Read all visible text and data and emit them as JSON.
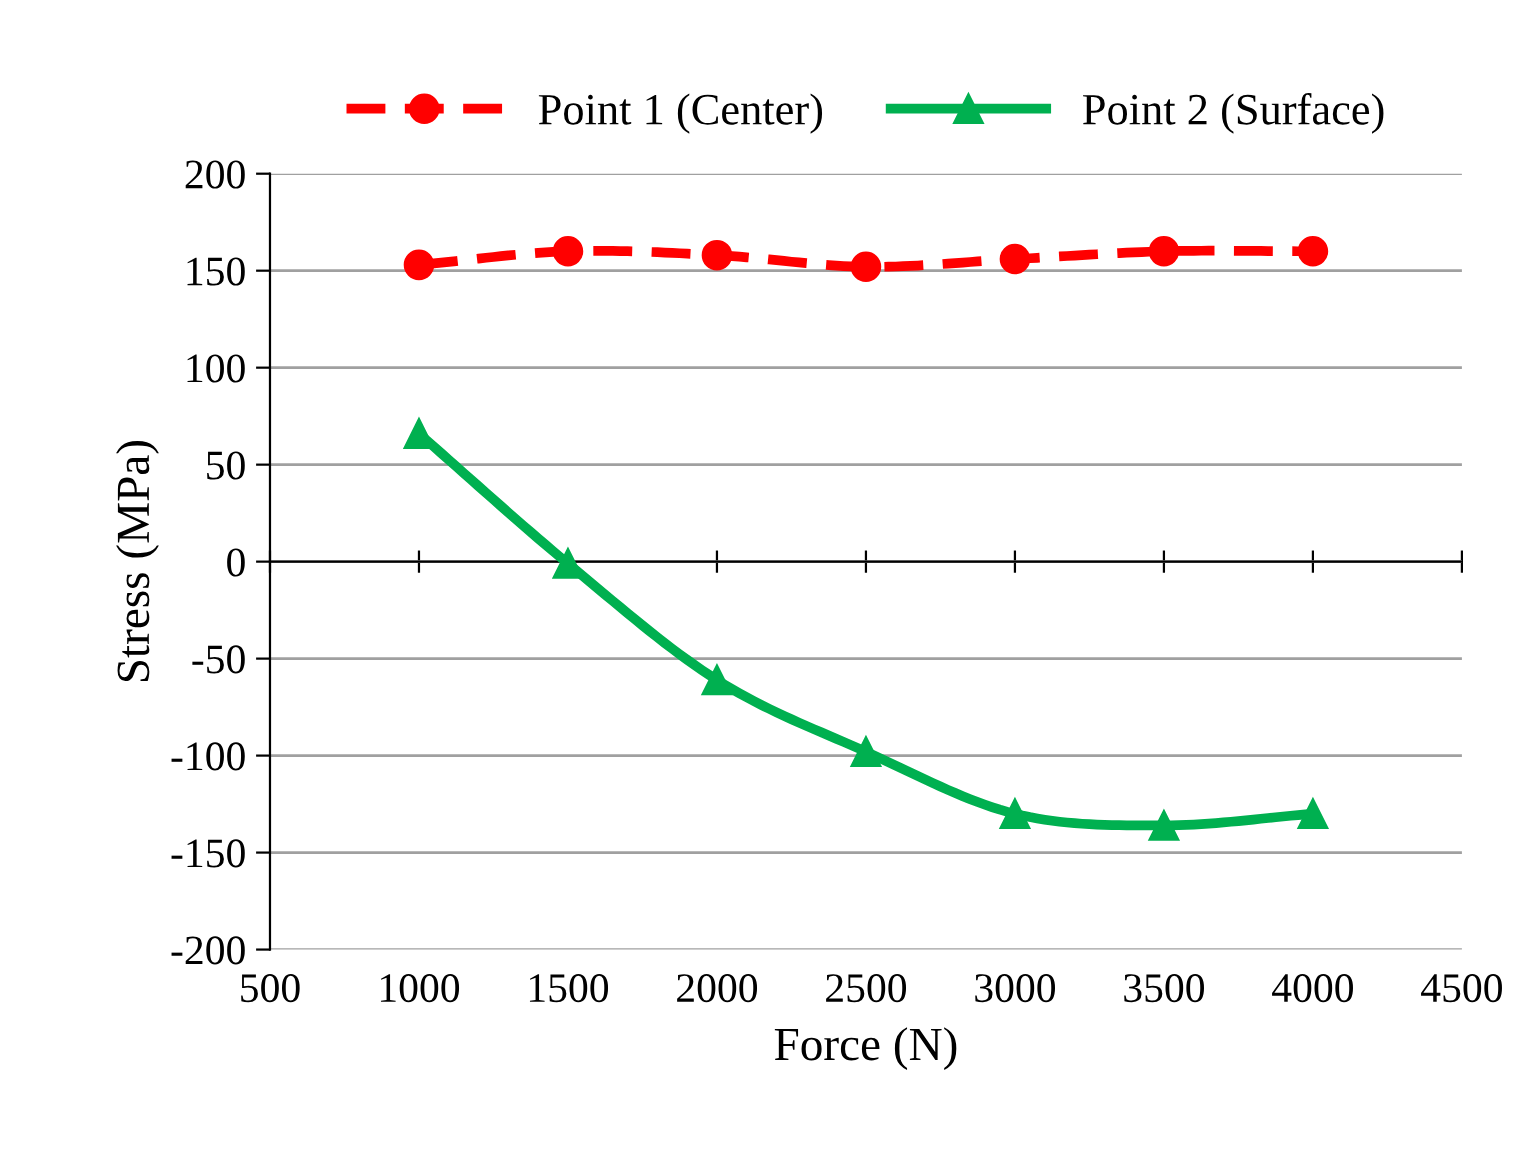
{
  "chart_data": {
    "type": "line",
    "xlabel": "Force (N)",
    "ylabel": "Stress (MPa)",
    "x": [
      1000,
      1500,
      2000,
      2500,
      3000,
      3500,
      4000
    ],
    "series": [
      {
        "name": "Point 1 (Center)",
        "color": "#ff0000",
        "marker": "circle",
        "line_style": "dashed",
        "values": [
          153,
          160,
          158,
          152,
          156,
          160,
          160
        ]
      },
      {
        "name": "Point 2 (Surface)",
        "color": "#00b050",
        "marker": "triangle",
        "line_style": "solid",
        "values": [
          66,
          -1,
          -61,
          -98,
          -130,
          -136,
          -130
        ]
      }
    ],
    "xlim": [
      500,
      4500
    ],
    "xticks": [
      500,
      1000,
      1500,
      2000,
      2500,
      3000,
      3500,
      4000,
      4500
    ],
    "ylim": [
      -200,
      200
    ],
    "yticks": [
      -200,
      -150,
      -100,
      -50,
      0,
      50,
      100,
      150,
      200
    ],
    "grid": "y",
    "legend": "top"
  }
}
